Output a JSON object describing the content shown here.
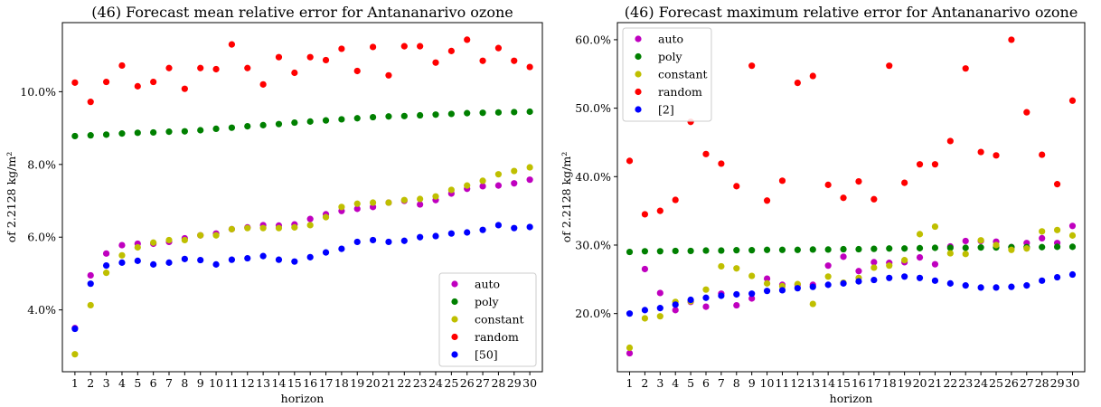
{
  "chart_data": [
    {
      "type": "scatter",
      "title": "(46) Forecast mean relative error for Antananarivo ozone",
      "xlabel": "horizon",
      "ylabel": "of 2.2128 kg/m²",
      "x": [
        1,
        2,
        3,
        4,
        5,
        6,
        7,
        8,
        9,
        10,
        11,
        12,
        13,
        14,
        15,
        16,
        17,
        18,
        19,
        20,
        21,
        22,
        23,
        24,
        25,
        26,
        27,
        28,
        29,
        30
      ],
      "xlim": [
        0.2,
        30.8
      ],
      "ylim": [
        2.3,
        11.9
      ],
      "yticks": [
        4.0,
        6.0,
        8.0,
        10.0
      ],
      "ytick_labels": [
        "4.0%",
        "6.0%",
        "8.0%",
        "10.0%"
      ],
      "legend_position": "lower-right",
      "series": [
        {
          "name": "auto",
          "color": "#bf00bf",
          "values": [
            3.5,
            4.95,
            5.55,
            5.78,
            5.82,
            5.82,
            5.87,
            5.97,
            6.05,
            6.1,
            6.22,
            6.27,
            6.33,
            6.32,
            6.35,
            6.5,
            6.63,
            6.72,
            6.78,
            6.83,
            6.95,
            7.0,
            6.9,
            7.02,
            7.2,
            7.33,
            7.4,
            7.42,
            7.48,
            7.58
          ]
        },
        {
          "name": "poly",
          "color": "#008000",
          "values": [
            8.78,
            8.8,
            8.82,
            8.85,
            8.87,
            8.88,
            8.9,
            8.91,
            8.94,
            8.98,
            9.01,
            9.05,
            9.08,
            9.11,
            9.15,
            9.18,
            9.21,
            9.24,
            9.27,
            9.3,
            9.32,
            9.33,
            9.35,
            9.37,
            9.39,
            9.41,
            9.42,
            9.43,
            9.44,
            9.45
          ]
        },
        {
          "name": "constant",
          "color": "#bfbf00",
          "values": [
            2.78,
            4.13,
            5.02,
            5.5,
            5.72,
            5.85,
            5.92,
            5.92,
            6.05,
            6.05,
            6.22,
            6.25,
            6.25,
            6.25,
            6.27,
            6.33,
            6.55,
            6.83,
            6.92,
            6.95,
            6.95,
            7.02,
            7.05,
            7.12,
            7.3,
            7.42,
            7.55,
            7.73,
            7.82,
            7.92
          ]
        },
        {
          "name": "random",
          "color": "#ff0000",
          "values": [
            10.25,
            9.72,
            10.27,
            10.72,
            10.15,
            10.27,
            10.65,
            10.08,
            10.65,
            10.62,
            11.3,
            10.65,
            10.2,
            10.95,
            10.52,
            10.95,
            10.87,
            11.18,
            10.57,
            11.23,
            10.45,
            11.25,
            11.25,
            10.8,
            11.12,
            11.43,
            10.85,
            11.2,
            10.85,
            10.68
          ]
        },
        {
          "name": "[50]",
          "color": "#0000ff",
          "values": [
            3.48,
            4.72,
            5.22,
            5.3,
            5.35,
            5.25,
            5.3,
            5.4,
            5.37,
            5.25,
            5.38,
            5.42,
            5.48,
            5.38,
            5.33,
            5.45,
            5.58,
            5.68,
            5.87,
            5.92,
            5.87,
            5.9,
            6.0,
            6.03,
            6.1,
            6.13,
            6.2,
            6.33,
            6.25,
            6.28
          ]
        }
      ]
    },
    {
      "type": "scatter",
      "title": "(46) Forecast maximum relative error for Antananarivo ozone",
      "xlabel": "horizon",
      "ylabel": "of 2.2128 kg/m²",
      "x": [
        1,
        2,
        3,
        4,
        5,
        6,
        7,
        8,
        9,
        10,
        11,
        12,
        13,
        14,
        15,
        16,
        17,
        18,
        19,
        20,
        21,
        22,
        23,
        24,
        25,
        26,
        27,
        28,
        29,
        30
      ],
      "xlim": [
        0.2,
        30.8
      ],
      "ylim": [
        11.5,
        62.5
      ],
      "yticks": [
        20.0,
        30.0,
        40.0,
        50.0,
        60.0
      ],
      "ytick_labels": [
        "20.0%",
        "30.0%",
        "40.0%",
        "50.0%",
        "60.0%"
      ],
      "legend_position": "upper-left",
      "series": [
        {
          "name": "auto",
          "color": "#bf00bf",
          "values": [
            14.2,
            26.5,
            23.0,
            20.5,
            21.7,
            21.0,
            22.9,
            21.2,
            22.2,
            25.1,
            24.2,
            24.2,
            24.2,
            27.0,
            28.3,
            26.2,
            27.5,
            27.4,
            27.5,
            28.2,
            27.2,
            29.8,
            30.6,
            30.6,
            30.5,
            29.7,
            30.3,
            31.0,
            30.3,
            32.8
          ]
        },
        {
          "name": "poly",
          "color": "#008000",
          "values": [
            29.0,
            29.1,
            29.1,
            29.15,
            29.15,
            29.2,
            29.2,
            29.25,
            29.25,
            29.3,
            29.3,
            29.3,
            29.35,
            29.35,
            29.4,
            29.4,
            29.45,
            29.5,
            29.5,
            29.55,
            29.6,
            29.6,
            29.6,
            29.65,
            29.65,
            29.7,
            29.7,
            29.7,
            29.75,
            29.75
          ]
        },
        {
          "name": "constant",
          "color": "#bfbf00",
          "values": [
            15.0,
            19.3,
            19.6,
            21.7,
            21.8,
            23.5,
            26.9,
            26.6,
            25.5,
            24.4,
            24.0,
            24.3,
            21.4,
            25.4,
            24.5,
            25.2,
            26.7,
            27.0,
            27.8,
            31.6,
            32.7,
            28.8,
            28.7,
            30.7,
            30.0,
            29.3,
            29.5,
            32.0,
            32.2,
            31.4
          ]
        },
        {
          "name": "random",
          "color": "#ff0000",
          "values": [
            42.3,
            34.5,
            35.0,
            36.6,
            48.0,
            43.3,
            41.9,
            38.6,
            56.2,
            36.5,
            39.4,
            53.7,
            54.7,
            38.8,
            36.9,
            39.3,
            36.7,
            56.2,
            39.1,
            41.8,
            41.8,
            45.2,
            55.8,
            43.6,
            43.1,
            60.0,
            49.4,
            43.2,
            38.9,
            51.1
          ]
        },
        {
          "name": "[2]",
          "color": "#0000ff",
          "values": [
            20.0,
            20.5,
            20.8,
            21.3,
            22.0,
            22.3,
            22.6,
            22.8,
            22.9,
            23.3,
            23.4,
            23.7,
            23.9,
            24.2,
            24.4,
            24.7,
            24.9,
            25.2,
            25.4,
            25.2,
            24.8,
            24.4,
            24.1,
            23.8,
            23.8,
            23.9,
            24.1,
            24.8,
            25.3,
            25.7
          ]
        }
      ]
    }
  ]
}
